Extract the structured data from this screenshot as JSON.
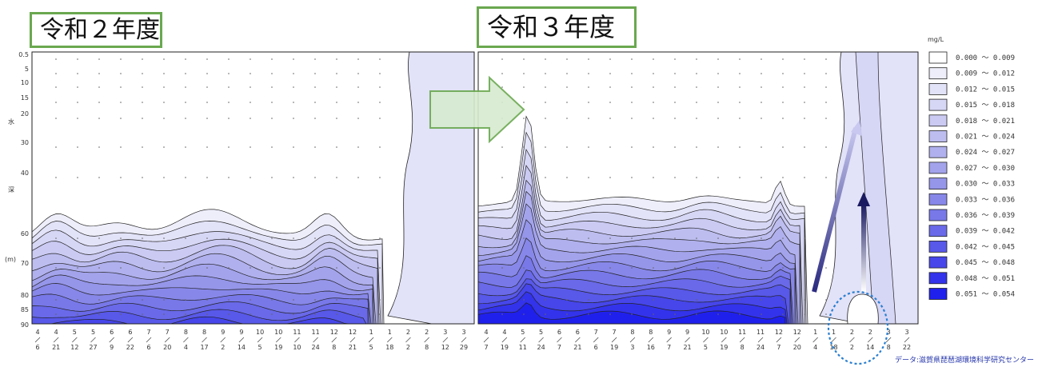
{
  "titles": {
    "left": "令和２年度",
    "right": "令和３年度"
  },
  "source": "データ:滋賀県琵琶湖環境科学研究センター",
  "chart_data": {
    "type": "heatmap",
    "unit": "mg/L",
    "ylabel_chars": [
      "水",
      "深",
      "(m)"
    ],
    "y_ticks": [
      "0.5",
      "5",
      "10",
      "15",
      "20",
      "30",
      "40",
      "60",
      "70",
      "80",
      "85",
      "90"
    ],
    "legend": [
      {
        "label": "0.000 ～ 0.009",
        "color": "#ffffff"
      },
      {
        "label": "0.009 ～ 0.012",
        "color": "#eeeefb"
      },
      {
        "label": "0.012 ～ 0.015",
        "color": "#e2e2f8"
      },
      {
        "label": "0.015 ～ 0.018",
        "color": "#d6d6f5"
      },
      {
        "label": "0.018 ～ 0.021",
        "color": "#cacaf3"
      },
      {
        "label": "0.021 ～ 0.024",
        "color": "#bdbdf0"
      },
      {
        "label": "0.024 ～ 0.027",
        "color": "#b0b0ee"
      },
      {
        "label": "0.027 ～ 0.030",
        "color": "#a3a3ec"
      },
      {
        "label": "0.030 ～ 0.033",
        "color": "#9595ea"
      },
      {
        "label": "0.033 ～ 0.036",
        "color": "#8787e9"
      },
      {
        "label": "0.036 ～ 0.039",
        "color": "#7878e9"
      },
      {
        "label": "0.039 ～ 0.042",
        "color": "#6969e9"
      },
      {
        "label": "0.042 ～ 0.045",
        "color": "#5858e9"
      },
      {
        "label": "0.045 ～ 0.048",
        "color": "#4646ea"
      },
      {
        "label": "0.048 ～ 0.051",
        "color": "#3333eb"
      },
      {
        "label": "0.051 ～ 0.054",
        "color": "#2020ec"
      }
    ],
    "panels": [
      {
        "name": "令和２年度",
        "dates": [
          [
            "4",
            "6"
          ],
          [
            "4",
            "21"
          ],
          [
            "5",
            "12"
          ],
          [
            "5",
            "27"
          ],
          [
            "6",
            "9"
          ],
          [
            "6",
            "22"
          ],
          [
            "7",
            "6"
          ],
          [
            "7",
            "20"
          ],
          [
            "8",
            "4"
          ],
          [
            "8",
            "17"
          ],
          [
            "9",
            "2"
          ],
          [
            "9",
            "14"
          ],
          [
            "10",
            "5"
          ],
          [
            "10",
            "19"
          ],
          [
            "11",
            "10"
          ],
          [
            "11",
            "24"
          ],
          [
            "12",
            "8"
          ],
          [
            "12",
            "21"
          ],
          [
            "1",
            "5"
          ],
          [
            "1",
            "18"
          ],
          [
            "2",
            "2"
          ],
          [
            "2",
            "8"
          ],
          [
            "3",
            "12"
          ],
          [
            "3",
            "29"
          ]
        ]
      },
      {
        "name": "令和３年度",
        "dates": [
          [
            "4",
            "7"
          ],
          [
            "4",
            "19"
          ],
          [
            "5",
            "11"
          ],
          [
            "5",
            "24"
          ],
          [
            "6",
            "7"
          ],
          [
            "6",
            "21"
          ],
          [
            "7",
            "6"
          ],
          [
            "7",
            "19"
          ],
          [
            "8",
            "3"
          ],
          [
            "8",
            "16"
          ],
          [
            "9",
            "7"
          ],
          [
            "9",
            "21"
          ],
          [
            "10",
            "5"
          ],
          [
            "10",
            "19"
          ],
          [
            "11",
            "8"
          ],
          [
            "11",
            "24"
          ],
          [
            "12",
            "7"
          ],
          [
            "12",
            "20"
          ],
          [
            "1",
            "4"
          ],
          [
            "1",
            "18"
          ],
          [
            "2",
            "2"
          ],
          [
            "2",
            "14"
          ],
          [
            "3",
            "8"
          ],
          [
            "3",
            "22"
          ]
        ]
      }
    ]
  }
}
